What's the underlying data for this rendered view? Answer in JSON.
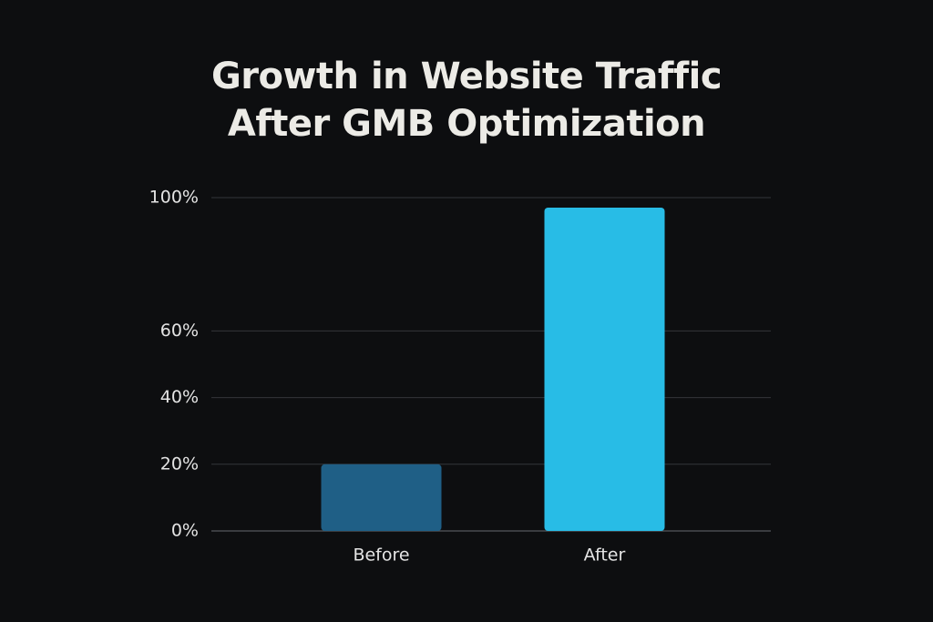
{
  "chart_data": {
    "type": "bar",
    "title": "Growth in Website Traffic After GMB Optimization",
    "categories": [
      "Before",
      "After"
    ],
    "values": [
      20,
      97
    ],
    "colors": [
      "#1f5f86",
      "#28bce6"
    ],
    "ylim": [
      0,
      100
    ],
    "yticks": [
      {
        "value": 100,
        "label": "100%"
      },
      {
        "value": 60,
        "label": "60%"
      },
      {
        "value": 40,
        "label": "40%"
      },
      {
        "value": 20,
        "label": "20%"
      },
      {
        "value": 0,
        "label": "0%"
      }
    ],
    "grid": true
  }
}
